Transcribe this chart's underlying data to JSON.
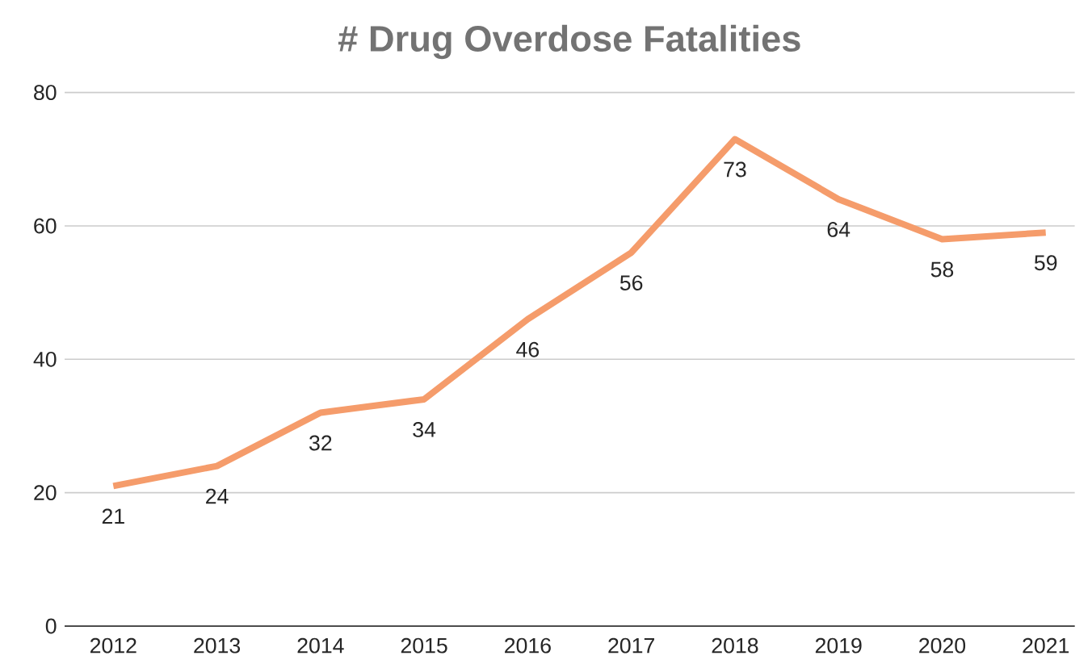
{
  "chart_data": {
    "type": "line",
    "title": "# Drug Overdose Fatalities",
    "categories": [
      "2012",
      "2013",
      "2014",
      "2015",
      "2016",
      "2017",
      "2018",
      "2019",
      "2020",
      "2021"
    ],
    "values": [
      21,
      24,
      32,
      34,
      46,
      56,
      73,
      64,
      58,
      59
    ],
    "color": "#f59c6b",
    "ylim": [
      0,
      80
    ],
    "yticks": [
      0,
      20,
      40,
      60,
      80
    ],
    "grid": "y",
    "data_labels": true,
    "marker": "none",
    "line_style": "solid"
  }
}
